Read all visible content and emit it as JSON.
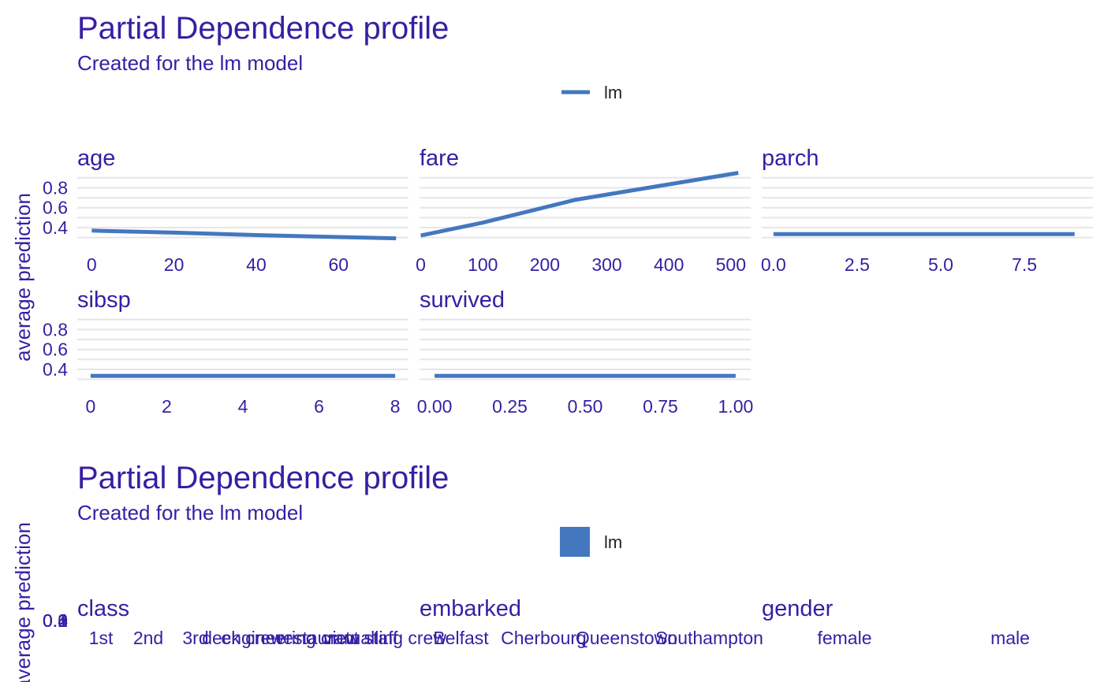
{
  "figures": [
    {
      "title": "Partial Dependence profile",
      "subtitle": "Created for the lm model",
      "legend": {
        "label": "lm",
        "key": "line"
      },
      "ylabel": "average prediction"
    },
    {
      "title": "Partial Dependence profile",
      "subtitle": "Created for the lm model",
      "legend": {
        "label": "lm",
        "key": "box"
      },
      "ylabel": "average prediction"
    }
  ],
  "colors": {
    "text": "#371EA3",
    "series": "#4378BF",
    "grid": "#e6e6ea"
  },
  "chart_data": [
    {
      "type": "line",
      "title": "Partial Dependence profile",
      "subtitle": "Created for the lm model",
      "ylabel": "average prediction",
      "legend_placement": "top",
      "grid": true,
      "series": [
        {
          "name": "lm"
        }
      ],
      "y_ticks": [
        "0.4",
        "0.6",
        "0.8"
      ],
      "ylim": [
        0.25,
        0.93
      ],
      "panels": [
        {
          "title": "age",
          "xlim": [
            -3.5,
            77
          ],
          "x_ticks": [
            0,
            20,
            40,
            60
          ],
          "x_tick_labels": [
            "0",
            "20",
            "40",
            "60"
          ],
          "x": [
            0,
            20,
            40,
            60,
            74
          ],
          "y": [
            0.37,
            0.35,
            0.325,
            0.305,
            0.293
          ]
        },
        {
          "title": "fare",
          "xlim": [
            -2,
            532
          ],
          "x_ticks": [
            0,
            100,
            200,
            300,
            400,
            500
          ],
          "x_tick_labels": [
            "0",
            "100",
            "200",
            "300",
            "400",
            "500"
          ],
          "x": [
            0,
            100,
            250,
            512
          ],
          "y": [
            0.32,
            0.45,
            0.68,
            0.95
          ]
        },
        {
          "title": "parch",
          "xlim": [
            -0.35,
            9.55
          ],
          "x_ticks": [
            0,
            2.5,
            5,
            7.5
          ],
          "x_tick_labels": [
            "0.0",
            "2.5",
            "5.0",
            "7.5"
          ],
          "x": [
            0,
            9
          ],
          "y": [
            0.335,
            0.335
          ]
        },
        {
          "title": "sibsp",
          "xlim": [
            -0.35,
            8.35
          ],
          "x_ticks": [
            0,
            2,
            4,
            6,
            8
          ],
          "x_tick_labels": [
            "0",
            "2",
            "4",
            "6",
            "8"
          ],
          "x": [
            0,
            8
          ],
          "y": [
            0.335,
            0.335
          ]
        },
        {
          "title": "survived",
          "xlim": [
            -0.05,
            1.05
          ],
          "x_ticks": [
            0,
            0.25,
            0.5,
            0.75,
            1
          ],
          "x_tick_labels": [
            "0.00",
            "0.25",
            "0.50",
            "0.75",
            "1.00"
          ],
          "x": [
            0,
            1
          ],
          "y": [
            0.335,
            0.335
          ]
        }
      ]
    },
    {
      "type": "bar",
      "title": "Partial Dependence profile",
      "subtitle": "Created for the lm model",
      "ylabel": "average prediction",
      "legend_placement": "top",
      "series": [
        {
          "name": "lm"
        }
      ],
      "y_tick_labels": [
        "0.0",
        "0.1",
        "0.2",
        "0.3",
        "0.4"
      ],
      "panels": [
        {
          "title": "class",
          "categories": [
            "1st",
            "2nd",
            "3rd",
            "deck crew",
            "engineering crew",
            "restaurant staff",
            "victualling crew"
          ]
        },
        {
          "title": "embarked",
          "categories": [
            "Belfast",
            "Cherbourg",
            "Queenstown",
            "Southampton"
          ]
        },
        {
          "title": "gender",
          "categories": [
            "female",
            "male"
          ]
        }
      ]
    }
  ]
}
